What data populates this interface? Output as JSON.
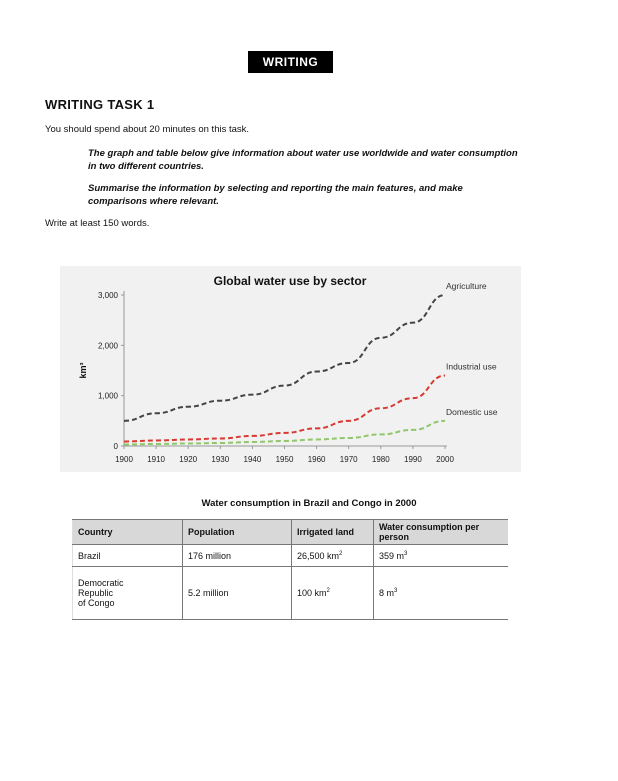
{
  "header": {
    "banner": "WRITING",
    "task_title": "WRITING TASK 1"
  },
  "instructions": {
    "time": "You should spend about 20 minutes on this task.",
    "prompt": "The graph and table below give information about water use worldwide and water consumption in two different countries.",
    "summarise": "Summarise the information by selecting and reporting the main features, and make comparisons where relevant.",
    "min_words": "Write at least 150 words."
  },
  "chart_data": {
    "type": "line",
    "title": "Global water use by sector",
    "xlabel": "",
    "ylabel": "km³",
    "x": [
      1900,
      1910,
      1920,
      1930,
      1940,
      1950,
      1960,
      1970,
      1980,
      1990,
      2000
    ],
    "xlim": [
      1900,
      2000
    ],
    "ylim": [
      0,
      3000
    ],
    "yticks": [
      0,
      1000,
      2000,
      3000
    ],
    "ytick_labels": [
      "0",
      "1,000",
      "2,000",
      "3,000"
    ],
    "xtick_labels": [
      "1900",
      "1910",
      "1920",
      "1930",
      "1940",
      "1950",
      "1960",
      "1970",
      "1980",
      "1990",
      "2000"
    ],
    "grid": false,
    "legend": "inline labels at line ends",
    "series": [
      {
        "name": "Agriculture",
        "color": "#444444",
        "values": [
          500,
          650,
          780,
          900,
          1020,
          1200,
          1480,
          1650,
          2150,
          2450,
          3000
        ]
      },
      {
        "name": "Industrial use",
        "color": "#d63a32",
        "values": [
          90,
          110,
          130,
          150,
          200,
          260,
          350,
          500,
          750,
          950,
          1400
        ]
      },
      {
        "name": "Domestic use",
        "color": "#8fc76a",
        "values": [
          30,
          40,
          50,
          60,
          80,
          100,
          130,
          160,
          230,
          320,
          500
        ]
      }
    ]
  },
  "table": {
    "title": "Water consumption in Brazil and Congo in 2000",
    "headers": [
      "Country",
      "Population",
      "Irrigated land",
      "Water consumption per person"
    ],
    "rows": [
      {
        "country": "Brazil",
        "population": "176 million",
        "irrigated_value": "26,500 km",
        "irrigated_sup": "2",
        "consumption_value": "359 m",
        "consumption_sup": "3"
      },
      {
        "country_lines": [
          "Democratic",
          "Republic",
          "of Congo"
        ],
        "population": "5.2 million",
        "irrigated_value": "100 km",
        "irrigated_sup": "2",
        "consumption_value": "8 m",
        "consumption_sup": "3"
      }
    ]
  }
}
